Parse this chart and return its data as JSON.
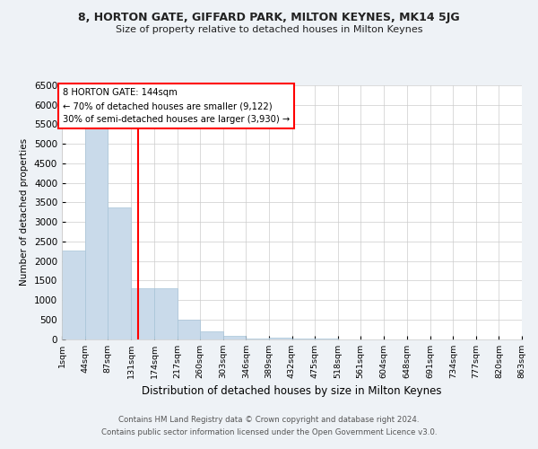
{
  "title": "8, HORTON GATE, GIFFARD PARK, MILTON KEYNES, MK14 5JG",
  "subtitle": "Size of property relative to detached houses in Milton Keynes",
  "xlabel": "Distribution of detached houses by size in Milton Keynes",
  "ylabel": "Number of detached properties",
  "bar_color": "#c9daea",
  "bar_edge_color": "#a8c4d8",
  "vline_x": 144,
  "vline_color": "red",
  "annotation_title": "8 HORTON GATE: 144sqm",
  "annotation_line1": "← 70% of detached houses are smaller (9,122)",
  "annotation_line2": "30% of semi-detached houses are larger (3,930) →",
  "annotation_box_color": "red",
  "bins": [
    1,
    44,
    87,
    131,
    174,
    217,
    260,
    303,
    346,
    389,
    432,
    475,
    518,
    561,
    604,
    648,
    691,
    734,
    777,
    820,
    863
  ],
  "bar_heights": [
    2270,
    5400,
    3380,
    1290,
    1290,
    490,
    190,
    80,
    20,
    30,
    10,
    10,
    0,
    0,
    0,
    0,
    0,
    0,
    0,
    0
  ],
  "ylim": [
    0,
    6500
  ],
  "yticks": [
    0,
    500,
    1000,
    1500,
    2000,
    2500,
    3000,
    3500,
    4000,
    4500,
    5000,
    5500,
    6000,
    6500
  ],
  "footer1": "Contains HM Land Registry data © Crown copyright and database right 2024.",
  "footer2": "Contains public sector information licensed under the Open Government Licence v3.0.",
  "bg_color": "#eef2f6",
  "plot_bg_color": "#ffffff"
}
